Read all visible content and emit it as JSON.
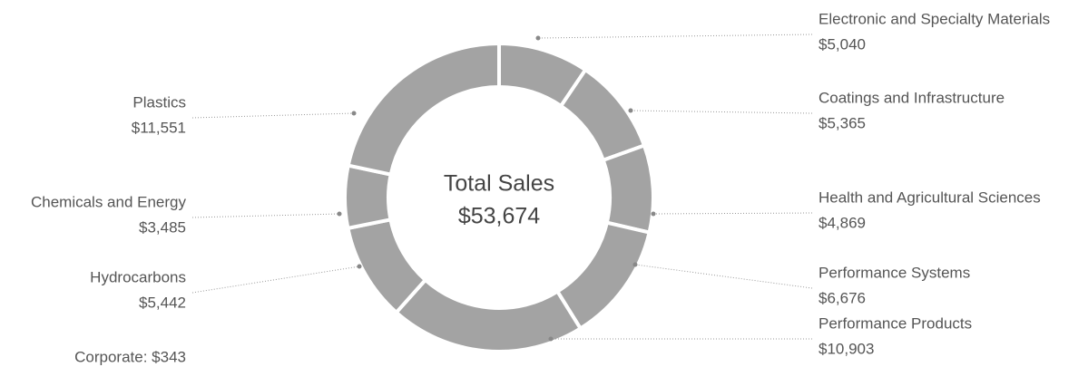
{
  "chart_data": {
    "type": "pie",
    "categories": [
      "Electronic and Specialty Materials",
      "Coatings and Infrastructure",
      "Health and Agricultural Sciences",
      "Performance Systems",
      "Performance Products",
      "Hydrocarbons",
      "Chemicals and Energy",
      "Plastics"
    ],
    "values": [
      5040,
      5365,
      4869,
      6676,
      10903,
      5442,
      3485,
      11551
    ],
    "value_labels": [
      "$5,040",
      "$5,365",
      "$4,869",
      "$6,676",
      "$10,903",
      "$5,442",
      "$3,485",
      "$11,551"
    ],
    "color": "#a3a3a3",
    "center_text": [
      "Total Sales",
      "$53,674"
    ],
    "annotation": "Corporate: $343"
  }
}
